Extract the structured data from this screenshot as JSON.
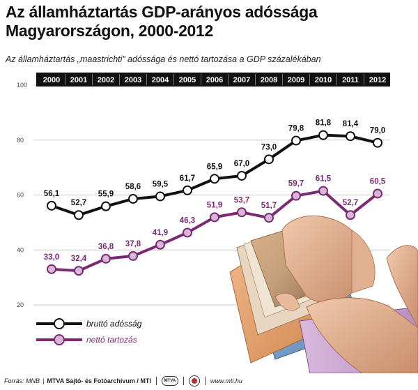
{
  "header": {
    "title_line1": "Az államháztartás GDP-arányos adóssága",
    "title_line2": "Magyarországon, 2000-2012",
    "subtitle": "Az államháztartás „maastrichti” adóssága és nettó tartozása a GDP százalékában"
  },
  "footer": {
    "source_prefix": "Forrás: MNB",
    "agency": "MTVA Sajtó- és Fotóarchívum / MTI",
    "logo_text": "MTVA",
    "url": "www.mti.hu"
  },
  "chart_data": {
    "type": "line",
    "title": "Az államháztartás GDP-arányos adóssága Magyarországon, 2000-2012",
    "subtitle": "Az államháztartás „maastrichti” adóssága és nettó tartozása a GDP százalékában",
    "categories": [
      "2000",
      "2001",
      "2002",
      "2003",
      "2004",
      "2005",
      "2006",
      "2007",
      "2008",
      "2009",
      "2010",
      "2011",
      "2012"
    ],
    "series": [
      {
        "name": "bruttó adósság",
        "color": "#111111",
        "values": [
          56.1,
          52.7,
          55.9,
          58.6,
          59.5,
          61.7,
          65.9,
          67.0,
          73.0,
          79.8,
          81.8,
          81.4,
          79.0
        ]
      },
      {
        "name": "nettó tartozás",
        "color": "#7a2a72",
        "values": [
          33.0,
          32.4,
          36.8,
          37.8,
          41.9,
          46.3,
          51.9,
          53.7,
          51.7,
          59.7,
          61.5,
          52.7,
          60.5
        ]
      }
    ],
    "value_labels": {
      "bruttó adósság": [
        "56,1",
        "52,7",
        "55,9",
        "58,6",
        "59,5",
        "61,7",
        "65,9",
        "67,0",
        "73,0",
        "79,8",
        "81,8",
        "81,4",
        "79,0"
      ],
      "nettó tartozás": [
        "33,0",
        "32,4",
        "36,8",
        "37,8",
        "41,9",
        "46,3",
        "51,9",
        "53,7",
        "51,7",
        "59,7",
        "61,5",
        "52,7",
        "60,5"
      ]
    },
    "ylim": [
      20,
      100
    ],
    "yticks": [
      "20",
      "40",
      "60",
      "80",
      "100"
    ],
    "grid": true,
    "legend_position": "bottom-left",
    "axis_colors": {
      "year_band": "#111111",
      "grid": "#c8c8c8",
      "tick": "#444444"
    }
  }
}
